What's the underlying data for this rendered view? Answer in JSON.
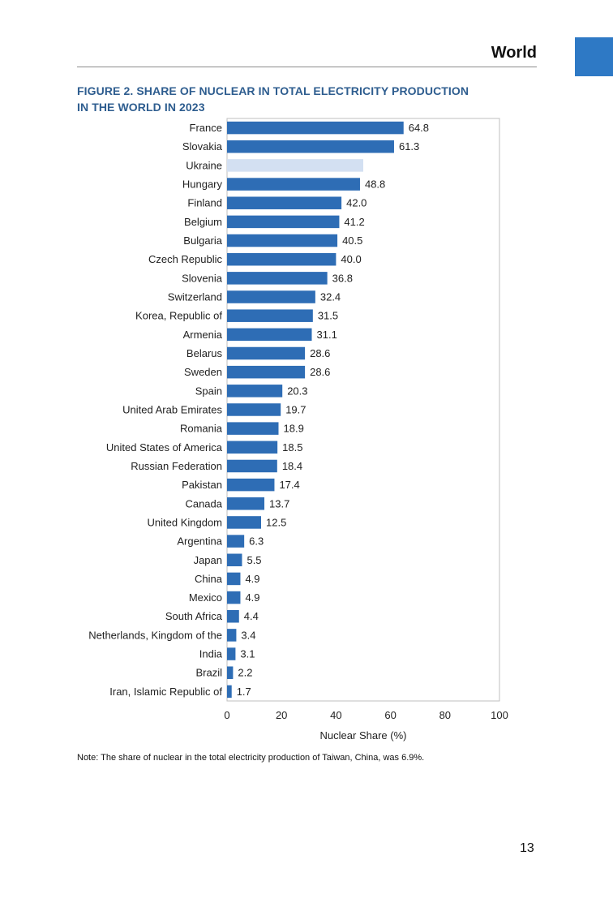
{
  "header": {
    "section": "World",
    "accent_color": "#2e79c5"
  },
  "figure": {
    "title_line1": "FIGURE 2. SHARE OF NUCLEAR IN TOTAL ELECTRICITY PRODUCTION",
    "title_line2": "IN THE WORLD IN 2023"
  },
  "chart_data": {
    "type": "bar",
    "orientation": "horizontal",
    "title": "FIGURE 2. SHARE OF NUCLEAR IN TOTAL ELECTRICITY PRODUCTION IN THE WORLD IN 2023",
    "xlabel": "Nuclear Share (%)",
    "ylabel": "",
    "xlim": [
      0,
      100
    ],
    "xticks": [
      0,
      20,
      40,
      60,
      80,
      100
    ],
    "grid": false,
    "bar_color": "#2e6db5",
    "highlight_color": "#d3e0f2",
    "categories": [
      "France",
      "Slovakia",
      "Ukraine",
      "Hungary",
      "Finland",
      "Belgium",
      "Bulgaria",
      "Czech Republic",
      "Slovenia",
      "Switzerland",
      "Korea, Republic of",
      "Armenia",
      "Belarus",
      "Sweden",
      "Spain",
      "United Arab Emirates",
      "Romania",
      "United States of America",
      "Russian Federation",
      "Pakistan",
      "Canada",
      "United Kingdom",
      "Argentina",
      "Japan",
      "China",
      "Mexico",
      "South Africa",
      "Netherlands, Kingdom of the",
      "India",
      "Brazil",
      "Iran, Islamic Republic of"
    ],
    "values": [
      64.8,
      61.3,
      50,
      48.8,
      42.0,
      41.2,
      40.5,
      40.0,
      36.8,
      32.4,
      31.5,
      31.1,
      28.6,
      28.6,
      20.3,
      19.7,
      18.9,
      18.5,
      18.4,
      17.4,
      13.7,
      12.5,
      6.3,
      5.5,
      4.9,
      4.9,
      4.4,
      3.4,
      3.1,
      2.2,
      1.7
    ],
    "value_labels": [
      "64.8",
      "61.3",
      "",
      "48.8",
      "42.0",
      "41.2",
      "40.5",
      "40.0",
      "36.8",
      "32.4",
      "31.5",
      "31.1",
      "28.6",
      "28.6",
      "20.3",
      "19.7",
      "18.9",
      "18.5",
      "18.4",
      "17.4",
      "13.7",
      "12.5",
      "6.3",
      "5.5",
      "4.9",
      "4.9",
      "4.4",
      "3.4",
      "3.1",
      "2.2",
      "1.7"
    ],
    "highlighted": [
      "Ukraine"
    ]
  },
  "note": "Note: The share of nuclear in the total electricity production of Taiwan, China, was 6.9%.",
  "page_number": "13"
}
